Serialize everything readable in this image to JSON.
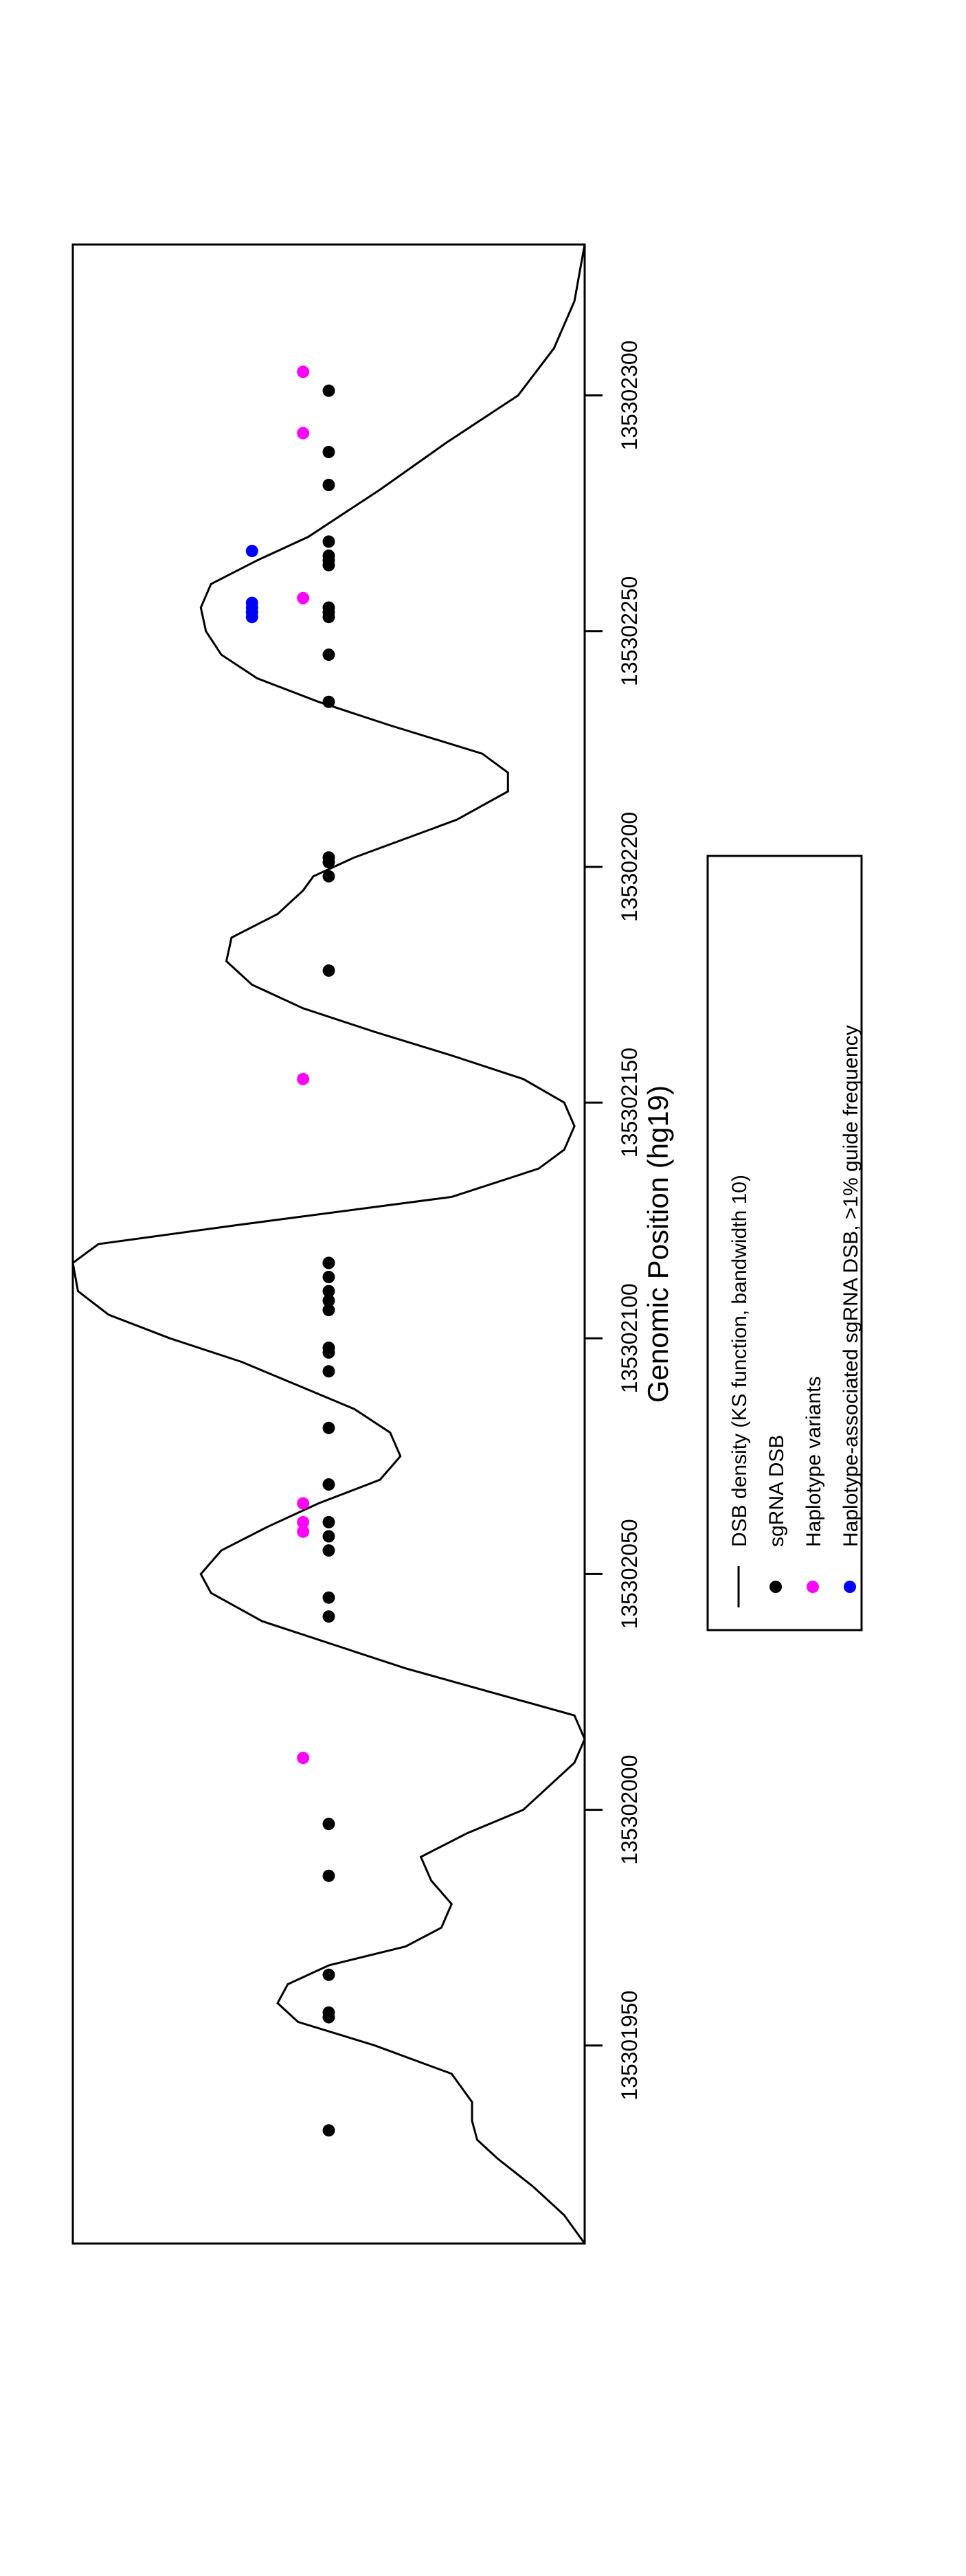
{
  "chart_data": {
    "type": "scatter",
    "title": "",
    "xlabel": "Genomic Position (hg19)",
    "ylabel": "",
    "orientation": "rotated-90-clockwise",
    "xlim": [
      135301908,
      135302332
    ],
    "x_ticks": [
      {
        "value": 135301950,
        "label": "135301950"
      },
      {
        "value": 135302000,
        "label": "135302000"
      },
      {
        "value": 135302050,
        "label": "135302050"
      },
      {
        "value": 135302100,
        "label": "135302100"
      },
      {
        "value": 135302150,
        "label": "135302150"
      },
      {
        "value": 135302200,
        "label": "135302200"
      },
      {
        "value": 135302250,
        "label": "135302250"
      },
      {
        "value": 135302300,
        "label": "135302300"
      }
    ],
    "grid": false,
    "legend_position": "bottom-center",
    "legend": [
      {
        "label": "DSB density (KS function, bandwidth 10)",
        "type": "line",
        "color": "#000000"
      },
      {
        "label": "sgRNA DSB",
        "type": "point",
        "color": "#000000"
      },
      {
        "label": "Haplotype variants",
        "type": "point",
        "color": "#ff00ff"
      },
      {
        "label": "Haplotype-associated sgRNA DSB, >1% guide frequency",
        "type": "point",
        "color": "#0000ff"
      }
    ],
    "density_curve": {
      "name": "DSB density (KS function, bandwidth 10)",
      "color": "#000000",
      "x": [
        135301908,
        135301914,
        135301920,
        135301926,
        135301930,
        135301934,
        135301938,
        135301944,
        135301950,
        135301955,
        135301959,
        135301963,
        135301967,
        135301971,
        135301975,
        135301980,
        135301985,
        135301990,
        135301995,
        135302000,
        135302005,
        135302010,
        135302015,
        135302020,
        135302030,
        135302040,
        135302046,
        135302050,
        135302055,
        135302060,
        135302065,
        135302070,
        135302075,
        135302080,
        135302085,
        135302090,
        135302095,
        135302100,
        135302105,
        135302110,
        135302116,
        135302120,
        135302124,
        135302130,
        135302136,
        135302140,
        135302145,
        135302150,
        135302155,
        135302160,
        135302165,
        135302170,
        135302175,
        135302180,
        135302185,
        135302190,
        135302195,
        135302198,
        135302202,
        135302210,
        135302216,
        135302220,
        135302224,
        135302230,
        135302235,
        135302240,
        135302245,
        135302250,
        135302255,
        135302260,
        135302265,
        135302270,
        135302280,
        135302290,
        135302300,
        135302310,
        135302320,
        135302326,
        135302332
      ],
      "y": [
        0.0,
        0.04,
        0.1,
        0.17,
        0.21,
        0.22,
        0.22,
        0.26,
        0.41,
        0.56,
        0.6,
        0.58,
        0.5,
        0.35,
        0.28,
        0.26,
        0.3,
        0.32,
        0.23,
        0.12,
        0.07,
        0.02,
        0.0,
        0.02,
        0.35,
        0.63,
        0.73,
        0.75,
        0.71,
        0.62,
        0.52,
        0.4,
        0.36,
        0.38,
        0.45,
        0.56,
        0.67,
        0.81,
        0.93,
        0.99,
        1.0,
        0.95,
        0.68,
        0.26,
        0.09,
        0.04,
        0.02,
        0.04,
        0.12,
        0.26,
        0.41,
        0.55,
        0.65,
        0.7,
        0.69,
        0.6,
        0.55,
        0.53,
        0.45,
        0.25,
        0.15,
        0.15,
        0.2,
        0.38,
        0.52,
        0.64,
        0.71,
        0.74,
        0.75,
        0.73,
        0.64,
        0.54,
        0.4,
        0.27,
        0.13,
        0.06,
        0.02,
        0.01,
        0.0
      ]
    },
    "series": [
      {
        "name": "sgRNA DSB",
        "color": "#000000",
        "level": 0.5,
        "x": [
          135301932,
          135301956,
          135301957,
          135301965,
          135301986,
          135301997,
          135302041,
          135302045,
          135302055,
          135302058,
          135302061,
          135302069,
          135302081,
          135302093,
          135302097,
          135302098,
          135302106,
          135302108,
          135302110,
          135302113,
          135302116,
          135302116,
          135302178,
          135302198,
          135302201,
          135302202,
          135302235,
          135302245,
          135302253,
          135302254,
          135302255,
          135302264,
          135302265,
          135302266,
          135302269,
          135302281,
          135302288,
          135302301
        ]
      },
      {
        "name": "Haplotype variants",
        "color": "#ff00ff",
        "level": 0.55,
        "x": [
          135302011,
          135302059,
          135302061,
          135302065,
          135302155,
          135302257,
          135302292,
          135302305
        ]
      },
      {
        "name": "Haplotype-associated sgRNA DSB, >1% guide frequency",
        "color": "#0000ff",
        "level": 0.65,
        "x": [
          135302253,
          135302254,
          135302255,
          135302256,
          135302267
        ]
      }
    ]
  }
}
